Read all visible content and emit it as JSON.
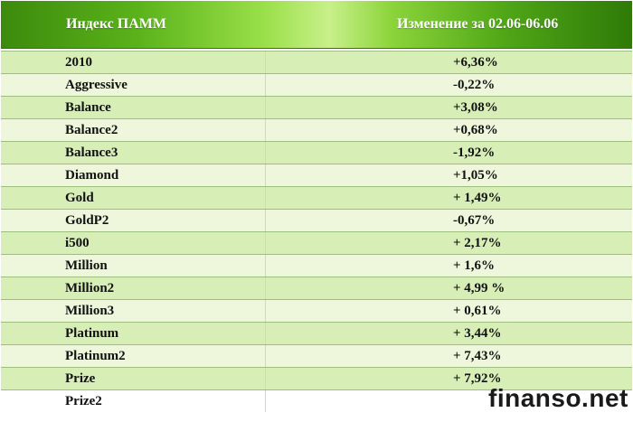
{
  "table": {
    "header": {
      "index_label": "Индекс ПАММ",
      "change_label": "Изменение за 02.06-06.06"
    },
    "rows": [
      {
        "name": "2010",
        "change": "+6,36%"
      },
      {
        "name": "Aggressive",
        "change": "-0,22%"
      },
      {
        "name": "Balance",
        "change": "+3,08%"
      },
      {
        "name": "Balance2",
        "change": "+0,68%"
      },
      {
        "name": "Balance3",
        "change": "-1,92%"
      },
      {
        "name": "Diamond",
        "change": "+1,05%"
      },
      {
        "name": "Gold",
        "change": "+ 1,49%"
      },
      {
        "name": "GoldP2",
        "change": "-0,67%"
      },
      {
        "name": "i500",
        "change": "+ 2,17%"
      },
      {
        "name": "Million",
        "change": "+ 1,6%"
      },
      {
        "name": "Million2",
        "change": "+ 4,99 %"
      },
      {
        "name": "Million3",
        "change": "+ 0,61%"
      },
      {
        "name": "Platinum",
        "change": "+ 3,44%"
      },
      {
        "name": "Platinum2",
        "change": "+ 7,43%"
      },
      {
        "name": "Prize",
        "change": "+ 7,92%"
      },
      {
        "name": "Prize2",
        "change": ""
      }
    ]
  },
  "watermark": "finanso.net",
  "colors": {
    "header_green": "#4fa616",
    "row_light_green": "#d7efb7",
    "row_pale_green": "#eef7dc"
  }
}
